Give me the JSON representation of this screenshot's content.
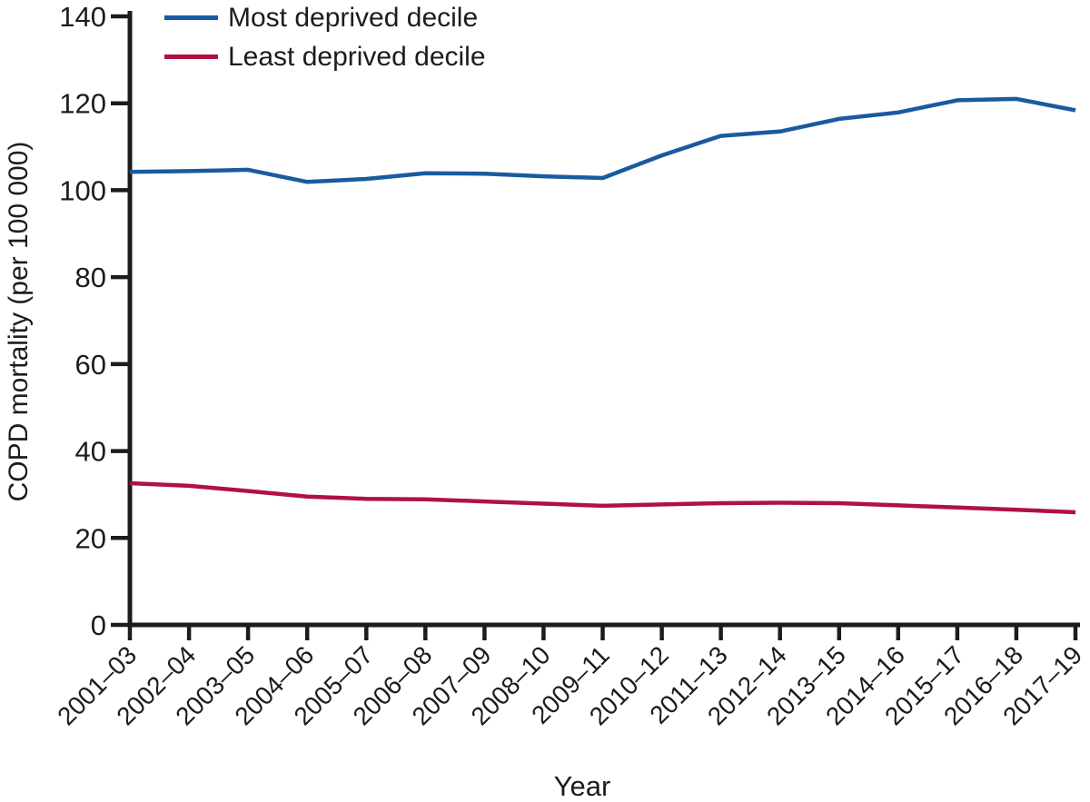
{
  "colors": {
    "axis": "#1d1c1a",
    "text": "#1d1c1a",
    "background": "#ffffff",
    "most_deprived_line": "#1a5a9f",
    "least_deprived_line": "#b01240"
  },
  "chart_data": {
    "type": "line",
    "title": "",
    "xlabel": "Year",
    "ylabel": "COPD mortality (per 100 000)",
    "categories": [
      "2001–03",
      "2002–04",
      "2003–05",
      "2004–06",
      "2005–07",
      "2006–08",
      "2007–09",
      "2008–10",
      "2009–11",
      "2010–12",
      "2011–13",
      "2012–14",
      "2013–15",
      "2014–16",
      "2015–17",
      "2016–18",
      "2017–19"
    ],
    "series": [
      {
        "name": "Most deprived decile",
        "color": "#1a5a9f",
        "values": [
          104.2,
          104.4,
          104.7,
          101.9,
          102.6,
          103.9,
          103.8,
          103.2,
          102.8,
          108.0,
          112.5,
          113.5,
          116.4,
          117.9,
          120.7,
          121.0,
          118.4
        ]
      },
      {
        "name": "Least deprived decile",
        "color": "#b01240",
        "values": [
          32.6,
          32.0,
          30.8,
          29.5,
          29.0,
          28.9,
          28.4,
          27.9,
          27.4,
          27.7,
          28.0,
          28.1,
          28.0,
          27.5,
          27.0,
          26.5,
          25.9
        ]
      }
    ],
    "ylim": [
      0,
      140
    ],
    "ytick_step": 20,
    "yticks": [
      0,
      20,
      40,
      60,
      80,
      100,
      120,
      140
    ],
    "grid": false,
    "legend_position": "top-left",
    "x_tick_label_rotation_deg": 45
  }
}
